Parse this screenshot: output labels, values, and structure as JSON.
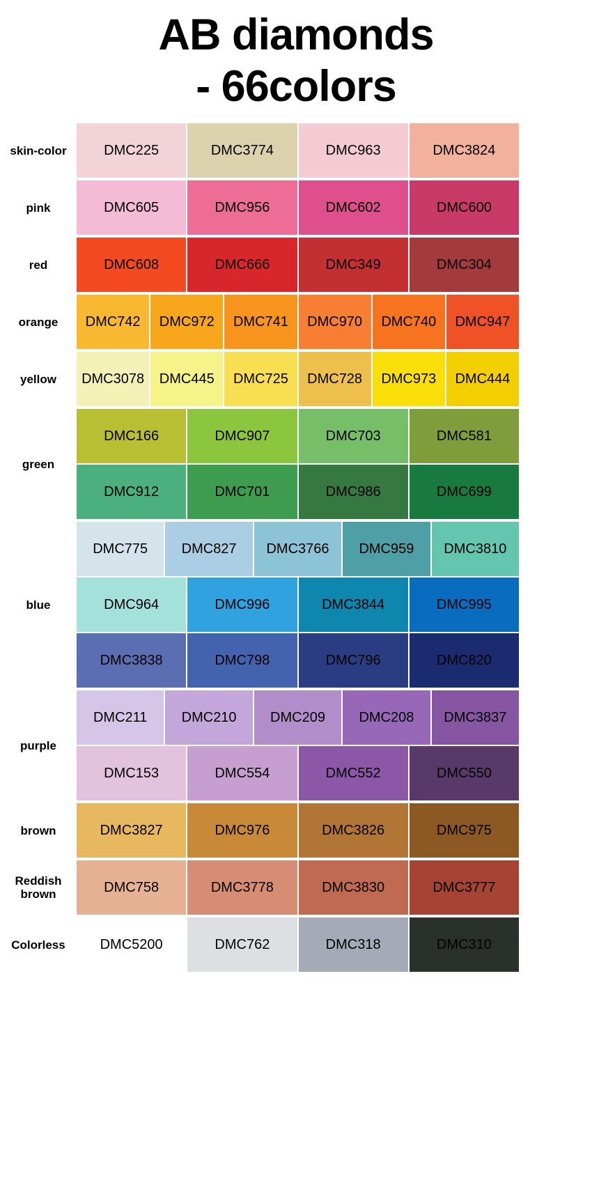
{
  "title": {
    "line1": "AB diamonds",
    "line2": "- 66colors"
  },
  "chart_data": {
    "type": "table",
    "title": "AB diamonds - 66colors",
    "legend_position": "left",
    "groups": [
      {
        "label": "skin-color",
        "rows": [
          [
            {
              "code": "DMC225",
              "color": "#F1D3D8"
            },
            {
              "code": "DMC3774",
              "color": "#DCD3AE"
            },
            {
              "code": "DMC963",
              "color": "#F5CBD3"
            },
            {
              "code": "DMC3824",
              "color": "#F2B19C"
            }
          ]
        ]
      },
      {
        "label": "pink",
        "rows": [
          [
            {
              "code": "DMC605",
              "color": "#F4BBD4"
            },
            {
              "code": "DMC956",
              "color": "#ED6D96"
            },
            {
              "code": "DMC602",
              "color": "#DE4F8B"
            },
            {
              "code": "DMC600",
              "color": "#C93A68"
            }
          ]
        ]
      },
      {
        "label": "red",
        "rows": [
          [
            {
              "code": "DMC608",
              "color": "#F34A21"
            },
            {
              "code": "DMC666",
              "color": "#D9262B"
            },
            {
              "code": "DMC349",
              "color": "#C42F31"
            },
            {
              "code": "DMC304",
              "color": "#A33B3C"
            }
          ]
        ]
      },
      {
        "label": "orange",
        "rows": [
          [
            {
              "code": "DMC742",
              "color": "#F9B832"
            },
            {
              "code": "DMC972",
              "color": "#F8A61B"
            },
            {
              "code": "DMC741",
              "color": "#F8951F"
            },
            {
              "code": "DMC970",
              "color": "#F87E33"
            },
            {
              "code": "DMC740",
              "color": "#F7731F"
            },
            {
              "code": "DMC947",
              "color": "#EF5226"
            }
          ]
        ]
      },
      {
        "label": "yellow",
        "rows": [
          [
            {
              "code": "DMC3078",
              "color": "#F3F1B6"
            },
            {
              "code": "DMC445",
              "color": "#F6F388"
            },
            {
              "code": "DMC725",
              "color": "#F8DF52"
            },
            {
              "code": "DMC728",
              "color": "#EDBF4C"
            },
            {
              "code": "DMC973",
              "color": "#FBDF0A"
            },
            {
              "code": "DMC444",
              "color": "#F3CE00"
            }
          ]
        ]
      },
      {
        "label": "green",
        "rows": [
          [
            {
              "code": "DMC166",
              "color": "#B9BF33"
            },
            {
              "code": "DMC907",
              "color": "#8CC63F"
            },
            {
              "code": "DMC703",
              "color": "#77BE69"
            },
            {
              "code": "DMC581",
              "color": "#7F9D3B"
            }
          ],
          [
            {
              "code": "DMC912",
              "color": "#4CAF7E"
            },
            {
              "code": "DMC701",
              "color": "#3E9C4F"
            },
            {
              "code": "DMC986",
              "color": "#367940"
            },
            {
              "code": "DMC699",
              "color": "#187A3E"
            }
          ]
        ]
      },
      {
        "label": "blue",
        "rows": [
          [
            {
              "code": "DMC775",
              "color": "#D5E4EA"
            },
            {
              "code": "DMC827",
              "color": "#ABCEE4"
            },
            {
              "code": "DMC3766",
              "color": "#8CC4D6"
            },
            {
              "code": "DMC959",
              "color": "#4F9FA6"
            },
            {
              "code": "DMC3810",
              "color": "#64C6AE"
            }
          ],
          [
            {
              "code": "DMC964",
              "color": "#A3E1DA"
            },
            {
              "code": "DMC996",
              "color": "#30A2DF"
            },
            {
              "code": "DMC3844",
              "color": "#0F86AE"
            },
            {
              "code": "DMC995",
              "color": "#0A6CBF"
            }
          ],
          [
            {
              "code": "DMC3838",
              "color": "#5B6EB2"
            },
            {
              "code": "DMC798",
              "color": "#4463AF"
            },
            {
              "code": "DMC796",
              "color": "#2B3D82"
            },
            {
              "code": "DMC820",
              "color": "#1B2B70"
            }
          ]
        ]
      },
      {
        "label": "purple",
        "rows": [
          [
            {
              "code": "DMC211",
              "color": "#D5C5E7"
            },
            {
              "code": "DMC210",
              "color": "#C3A6DA"
            },
            {
              "code": "DMC209",
              "color": "#B18ECA"
            },
            {
              "code": "DMC208",
              "color": "#9767B8"
            },
            {
              "code": "DMC3837",
              "color": "#8656A2"
            }
          ],
          [
            {
              "code": "DMC153",
              "color": "#E3C2DE"
            },
            {
              "code": "DMC554",
              "color": "#C69FD0"
            },
            {
              "code": "DMC552",
              "color": "#8B57A6"
            },
            {
              "code": "DMC550",
              "color": "#59386A"
            }
          ]
        ]
      },
      {
        "label": "brown",
        "rows": [
          [
            {
              "code": "DMC3827",
              "color": "#E7B85F"
            },
            {
              "code": "DMC976",
              "color": "#C88938"
            },
            {
              "code": "DMC3826",
              "color": "#B17535"
            },
            {
              "code": "DMC975",
              "color": "#8C5823"
            }
          ]
        ]
      },
      {
        "label": "Reddish brown",
        "rows": [
          [
            {
              "code": "DMC758",
              "color": "#E7B294"
            },
            {
              "code": "DMC3778",
              "color": "#D78D73"
            },
            {
              "code": "DMC3830",
              "color": "#C16A52"
            },
            {
              "code": "DMC3777",
              "color": "#A54434"
            }
          ]
        ]
      },
      {
        "label": "Colorless",
        "rows": [
          [
            {
              "code": "DMC5200",
              "color": "#FFFFFF"
            },
            {
              "code": "DMC762",
              "color": "#DCE0E3"
            },
            {
              "code": "DMC318",
              "color": "#A4ABB6"
            },
            {
              "code": "DMC310",
              "color": "#2A312B"
            }
          ]
        ]
      }
    ]
  }
}
